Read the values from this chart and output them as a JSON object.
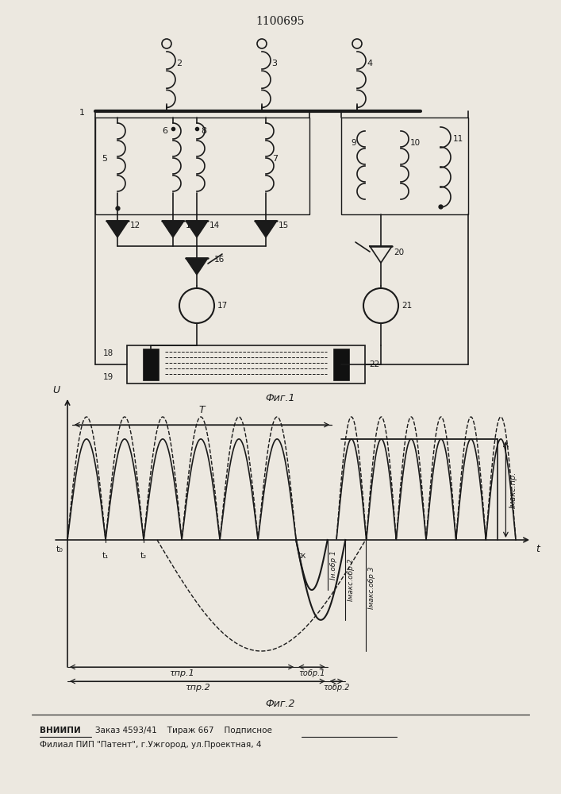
{
  "title": "1100695",
  "fig1_label": "Фиг.1",
  "fig2_label": "Фиг.2",
  "footer_line1_bold": "ВНИИПИ",
  "footer_line1_rest": "   Заказ 4593/41    Тираж 667    Подписное",
  "footer_line2": "Филиал ПИП \"Патент\", г.Ужгород, ул.Проектная, 4",
  "bg_color": "#ece8e0",
  "line_color": "#1a1a1a"
}
